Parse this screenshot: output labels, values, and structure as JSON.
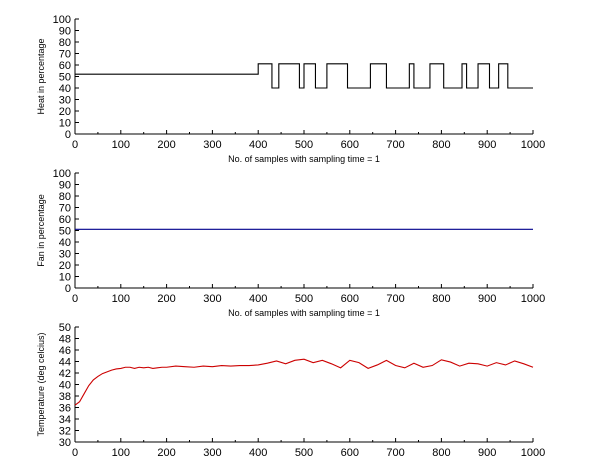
{
  "chart_data": [
    {
      "type": "line",
      "title": "",
      "xlabel": "No. of samples with sampling time = 1",
      "ylabel": "Heat in percentage",
      "xlim": [
        0,
        1000
      ],
      "ylim": [
        0,
        100
      ],
      "xticks": [
        0,
        100,
        200,
        300,
        400,
        500,
        600,
        700,
        800,
        900,
        1000
      ],
      "yticks": [
        0,
        10,
        20,
        30,
        40,
        50,
        60,
        70,
        80,
        90,
        100
      ],
      "grid": false,
      "series": [
        {
          "color": "#000000",
          "x": [
            0,
            400,
            400,
            430,
            430,
            445,
            445,
            490,
            490,
            500,
            500,
            525,
            525,
            550,
            550,
            595,
            595,
            645,
            645,
            680,
            680,
            730,
            730,
            740,
            740,
            775,
            775,
            805,
            805,
            845,
            845,
            855,
            855,
            880,
            880,
            905,
            905,
            925,
            925,
            945,
            945,
            960,
            960,
            1000
          ],
          "y": [
            52,
            52,
            61,
            61,
            40,
            40,
            61,
            61,
            40,
            40,
            61,
            61,
            40,
            40,
            61,
            61,
            40,
            40,
            61,
            61,
            40,
            40,
            61,
            61,
            40,
            40,
            61,
            61,
            40,
            40,
            61,
            61,
            40,
            40,
            61,
            61,
            40,
            40,
            61,
            61,
            40,
            40,
            40,
            40
          ]
        }
      ]
    },
    {
      "type": "line",
      "title": "",
      "xlabel": "No. of samples with sampling time = 1",
      "ylabel": "Fan in percentage",
      "xlim": [
        0,
        1000
      ],
      "ylim": [
        0,
        100
      ],
      "xticks": [
        0,
        100,
        200,
        300,
        400,
        500,
        600,
        700,
        800,
        900,
        1000
      ],
      "yticks": [
        0,
        10,
        20,
        30,
        40,
        50,
        60,
        70,
        80,
        90,
        100
      ],
      "grid": false,
      "series": [
        {
          "color": "#00008b",
          "x": [
            0,
            1000
          ],
          "y": [
            51,
            51
          ]
        }
      ]
    },
    {
      "type": "line",
      "title": "",
      "xlabel": "",
      "ylabel": "Temperature (deg celcius)",
      "xlim": [
        0,
        1000
      ],
      "ylim": [
        30,
        50
      ],
      "xticks": [
        0,
        100,
        200,
        300,
        400,
        500,
        600,
        700,
        800,
        900,
        1000
      ],
      "yticks": [
        30,
        32,
        34,
        36,
        38,
        40,
        42,
        44,
        46,
        48,
        50
      ],
      "grid": false,
      "series": [
        {
          "color": "#cc0000",
          "x": [
            0,
            10,
            20,
            30,
            40,
            50,
            60,
            70,
            80,
            90,
            100,
            110,
            120,
            130,
            140,
            150,
            160,
            170,
            180,
            190,
            200,
            220,
            240,
            260,
            280,
            300,
            320,
            340,
            360,
            380,
            400,
            420,
            440,
            460,
            480,
            500,
            520,
            540,
            560,
            580,
            600,
            620,
            640,
            660,
            680,
            700,
            720,
            740,
            760,
            780,
            800,
            820,
            840,
            860,
            880,
            900,
            920,
            940,
            960,
            980,
            1000
          ],
          "y": [
            36.4,
            37.0,
            38.4,
            39.8,
            40.8,
            41.4,
            41.9,
            42.2,
            42.5,
            42.7,
            42.8,
            43.0,
            43.0,
            42.8,
            43.0,
            42.9,
            43.0,
            42.8,
            42.9,
            43.0,
            43.0,
            43.2,
            43.1,
            43.0,
            43.2,
            43.1,
            43.3,
            43.2,
            43.3,
            43.3,
            43.4,
            43.7,
            44.1,
            43.6,
            44.2,
            44.4,
            43.8,
            44.2,
            43.6,
            42.9,
            44.2,
            43.8,
            42.8,
            43.4,
            44.2,
            43.3,
            42.9,
            43.7,
            43.0,
            43.3,
            44.3,
            43.9,
            43.2,
            43.7,
            43.6,
            43.2,
            43.8,
            43.4,
            44.1,
            43.6,
            43.0
          ]
        }
      ]
    }
  ]
}
